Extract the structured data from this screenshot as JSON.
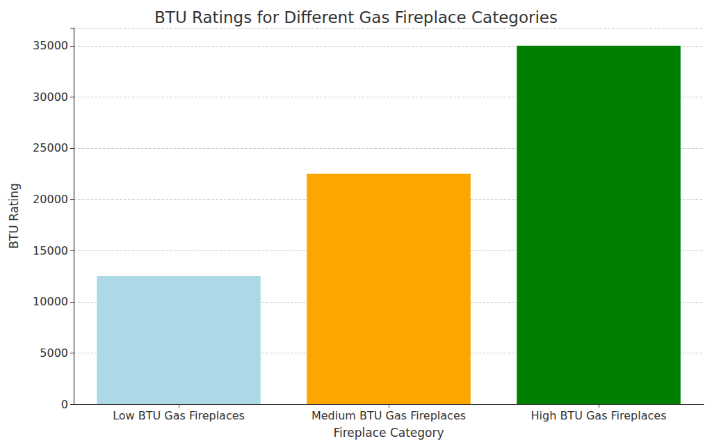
{
  "chart_data": {
    "type": "bar",
    "title": "BTU Ratings for Different Gas Fireplace Categories",
    "x_label": "Fireplace Category",
    "y_label": "BTU Rating",
    "categories": [
      "Low BTU Gas Fireplaces",
      "Medium BTU Gas Fireplaces",
      "High BTU Gas Fireplaces"
    ],
    "values": [
      12500,
      22500,
      35000
    ],
    "colors": [
      "#add8e6",
      "#ffa500",
      "#008000"
    ],
    "ylim": [
      0,
      36750
    ],
    "yticks": [
      0,
      5000,
      10000,
      15000,
      20000,
      25000,
      30000,
      35000
    ],
    "grid": true
  }
}
